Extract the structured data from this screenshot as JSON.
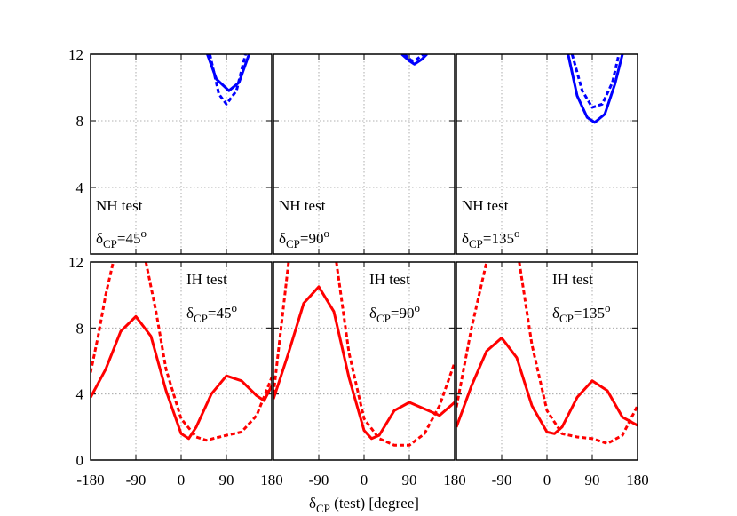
{
  "chart_data": [
    {
      "type": "line",
      "xlim": [
        -180,
        180
      ],
      "ylim": [
        0,
        12
      ],
      "yticks": [
        4,
        8,
        12
      ],
      "annotation": "NH test",
      "param": "δ",
      "param_sub": "CP",
      "param_value": "=45",
      "param_sup": "o",
      "series": [
        {
          "color": "#0000ff",
          "dash": false,
          "x": [
            52,
            70,
            95,
            115,
            135
          ],
          "values": [
            12,
            10.5,
            9.8,
            10.3,
            12
          ]
        },
        {
          "color": "#0000ff",
          "dash": true,
          "x": [
            57,
            75,
            90,
            110,
            128
          ],
          "values": [
            12,
            9.6,
            9.0,
            9.8,
            12
          ]
        }
      ]
    },
    {
      "type": "line",
      "xlim": [
        -180,
        180
      ],
      "ylim": [
        0,
        12
      ],
      "annotation": "NH test",
      "param": "δ",
      "param_sub": "CP",
      "param_value": "=90",
      "param_sup": "o",
      "series": [
        {
          "color": "#0000ff",
          "dash": false,
          "x": [
            75,
            90,
            100,
            115,
            125
          ],
          "values": [
            12,
            11.6,
            11.4,
            11.7,
            12
          ]
        },
        {
          "color": "#0000ff",
          "dash": true,
          "x": [
            80,
            95,
            105,
            118
          ],
          "values": [
            12,
            11.6,
            11.7,
            12
          ]
        }
      ]
    },
    {
      "type": "line",
      "xlim": [
        -180,
        180
      ],
      "ylim": [
        0,
        12
      ],
      "annotation": "NH test",
      "param": "δ",
      "param_sub": "CP",
      "param_value": "=135",
      "param_sup": "o",
      "series": [
        {
          "color": "#0000ff",
          "dash": false,
          "x": [
            42,
            60,
            80,
            95,
            115,
            135,
            150
          ],
          "values": [
            12,
            9.5,
            8.2,
            7.9,
            8.4,
            10.2,
            12
          ]
        },
        {
          "color": "#0000ff",
          "dash": true,
          "x": [
            50,
            70,
            90,
            110,
            130,
            143
          ],
          "values": [
            12,
            9.8,
            8.8,
            9.0,
            10.3,
            12
          ]
        }
      ]
    },
    {
      "type": "line",
      "xlim": [
        -180,
        180
      ],
      "ylim": [
        0,
        12
      ],
      "yticks": [
        0,
        4,
        8,
        12
      ],
      "xticks": [
        -180,
        -90,
        0,
        90,
        180
      ],
      "annotation": "IH test",
      "param": "δ",
      "param_sub": "CP",
      "param_value": "=45",
      "param_sup": "o",
      "series": [
        {
          "color": "#ff0000",
          "dash": false,
          "x": [
            -180,
            -150,
            -120,
            -90,
            -60,
            -30,
            0,
            15,
            30,
            60,
            90,
            120,
            150,
            165,
            180
          ],
          "values": [
            3.8,
            5.5,
            7.8,
            8.7,
            7.5,
            4.2,
            1.6,
            1.3,
            2.0,
            4.0,
            5.1,
            4.8,
            3.9,
            3.6,
            4.5
          ]
        },
        {
          "color": "#ff0000",
          "dash": true,
          "x": [
            -180,
            -165,
            -150,
            -135,
            -100,
            -70,
            -50,
            -30,
            0,
            30,
            50,
            90,
            120,
            150,
            180
          ],
          "values": [
            5.3,
            7.5,
            10,
            12,
            null,
            12,
            9,
            5.5,
            2.5,
            1.4,
            1.2,
            1.5,
            1.7,
            2.7,
            5.0
          ]
        }
      ]
    },
    {
      "type": "line",
      "xlim": [
        -180,
        180
      ],
      "ylim": [
        0,
        12
      ],
      "xticks": [
        -90,
        0,
        90,
        180
      ],
      "annotation": "IH test",
      "param": "δ",
      "param_sub": "CP",
      "param_value": "=90",
      "param_sup": "o",
      "series": [
        {
          "color": "#ff0000",
          "dash": false,
          "x": [
            -180,
            -150,
            -120,
            -90,
            -60,
            -30,
            0,
            15,
            30,
            60,
            90,
            120,
            150,
            180
          ],
          "values": [
            3.7,
            6.5,
            9.5,
            10.5,
            9,
            5,
            1.8,
            1.3,
            1.5,
            3,
            3.5,
            3.1,
            2.7,
            3.5
          ]
        },
        {
          "color": "#ff0000",
          "dash": true,
          "x": [
            -180,
            -165,
            -150,
            -100,
            -55,
            -30,
            0,
            30,
            60,
            90,
            120,
            150,
            180
          ],
          "values": [
            4,
            8,
            12,
            null,
            12,
            6.5,
            2.5,
            1.3,
            0.9,
            0.9,
            1.6,
            3.3,
            5.9
          ]
        }
      ]
    },
    {
      "type": "line",
      "xlim": [
        -180,
        180
      ],
      "ylim": [
        0,
        12
      ],
      "xticks": [
        -90,
        0,
        90,
        180
      ],
      "annotation": "IH test",
      "param": "δ",
      "param_sub": "CP",
      "param_value": "=135",
      "param_sup": "o",
      "series": [
        {
          "color": "#ff0000",
          "dash": false,
          "x": [
            -180,
            -150,
            -120,
            -90,
            -60,
            -30,
            0,
            15,
            30,
            60,
            90,
            120,
            150,
            180
          ],
          "values": [
            2,
            4.5,
            6.6,
            7.4,
            6.2,
            3.3,
            1.7,
            1.6,
            2,
            3.8,
            4.8,
            4.2,
            2.6,
            2.1
          ]
        },
        {
          "color": "#ff0000",
          "dash": true,
          "x": [
            -180,
            -150,
            -120,
            -90,
            -55,
            -30,
            0,
            30,
            60,
            90,
            120,
            150,
            180
          ],
          "values": [
            3.2,
            8,
            12,
            null,
            12,
            7,
            3,
            1.6,
            1.4,
            1.3,
            1,
            1.5,
            3.3
          ]
        }
      ]
    }
  ],
  "x_label": {
    "param": "δ",
    "param_sub": "CP",
    "rest": " (test) [degree]"
  }
}
